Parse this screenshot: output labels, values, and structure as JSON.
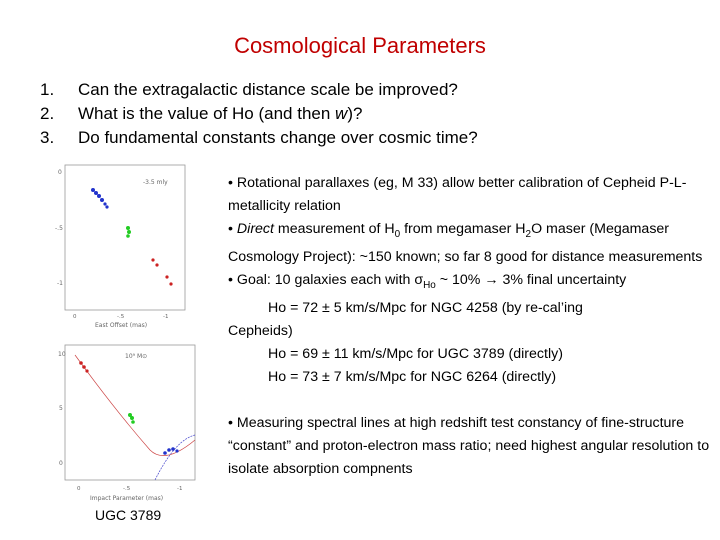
{
  "title": "Cosmological Parameters",
  "questions": [
    {
      "num": "1.",
      "text": "Can the extragalactic distance scale be improved?"
    },
    {
      "num": "2.",
      "text_pre": "What is the value of Ho (and then ",
      "text_em": "w",
      "text_post": ")?"
    },
    {
      "num": "3.",
      "text": "Do fundamental constants change over cosmic time?"
    }
  ],
  "bullets": {
    "b1": "• Rotational parallaxes (eg, M 33) allow better calibration of Cepheid P-L-metallicity relation",
    "b2_em": "Direct",
    "b2_pre": "• ",
    "b2_mid": " measurement of H",
    "b2_sub": "0",
    "b2_rest1": " from megamaser H",
    "b2_sub2": "2",
    "b2_rest2": "O maser (Megamaser Cosmology Project): ~150 known; so far 8 good for distance measurements",
    "b3_pre": "• Goal: 10 galaxies each with ",
    "b3_sigma": "σ",
    "b3_sub": "Ho",
    "b3_post": " ~ 10% → 3% final uncertainty",
    "h1": "Ho = 72 ± 5 km/s/Mpc for NGC 4258 (by re-cal’ing",
    "h1b": "Cepheids)",
    "h2": "Ho = 69 ± 11 km/s/Mpc for UGC 3789 (directly)",
    "h3": "Ho = 73 ± 7 km/s/Mpc for NGC 6264 (directly)",
    "b4": "• Measuring spectral lines at high redshift test constancy of fine-structure “constant” and proton-electron mass ratio; need highest angular resolution to isolate absorption compnents"
  },
  "figure": {
    "top_axis_y_ticks": [
      "0",
      "-.5",
      "-1"
    ],
    "top_x_label": "East Offset (mas)",
    "top_x_ticks": [
      "0",
      "-.5",
      "-1"
    ],
    "top_note": "-3.5 mly",
    "bot_axis_y_ticks": [
      "10",
      "5",
      "0"
    ],
    "bot_note": "10⁹ M⊙",
    "bot_x_label": "Impact Parameter (mas)",
    "bot_x_ticks": [
      "0",
      "-.5",
      "-1"
    ],
    "caption": "UGC 3789",
    "colors": {
      "blue": "#2233cc",
      "green": "#22cc22",
      "red": "#cc2222",
      "axis": "#777777"
    }
  }
}
